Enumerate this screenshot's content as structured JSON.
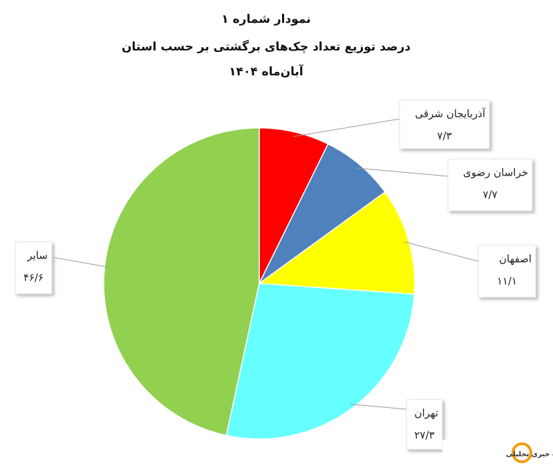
{
  "chart_data": {
    "type": "pie",
    "title": "نمودار شماره ۱",
    "subtitle": "درصد توزیع تعداد چک‌های برگشتی بر حسب استان",
    "period": "آبان‌ماه ۱۴۰۴",
    "categories": [
      "آذربایجان شرقی",
      "خراسان رضوی",
      "اصفهان",
      "تهران",
      "سایر"
    ],
    "values": [
      7.3,
      7.7,
      11.1,
      27.3,
      46.6
    ],
    "value_labels": [
      "۷/۳",
      "۷/۷",
      "۱۱/۱",
      "۲۷/۳",
      "۴۶/۶"
    ],
    "colors": [
      "#ff0000",
      "#4f81bd",
      "#ffff00",
      "#66ffff",
      "#92d050"
    ]
  },
  "watermark": "پایگاه خبری تحلیلی"
}
